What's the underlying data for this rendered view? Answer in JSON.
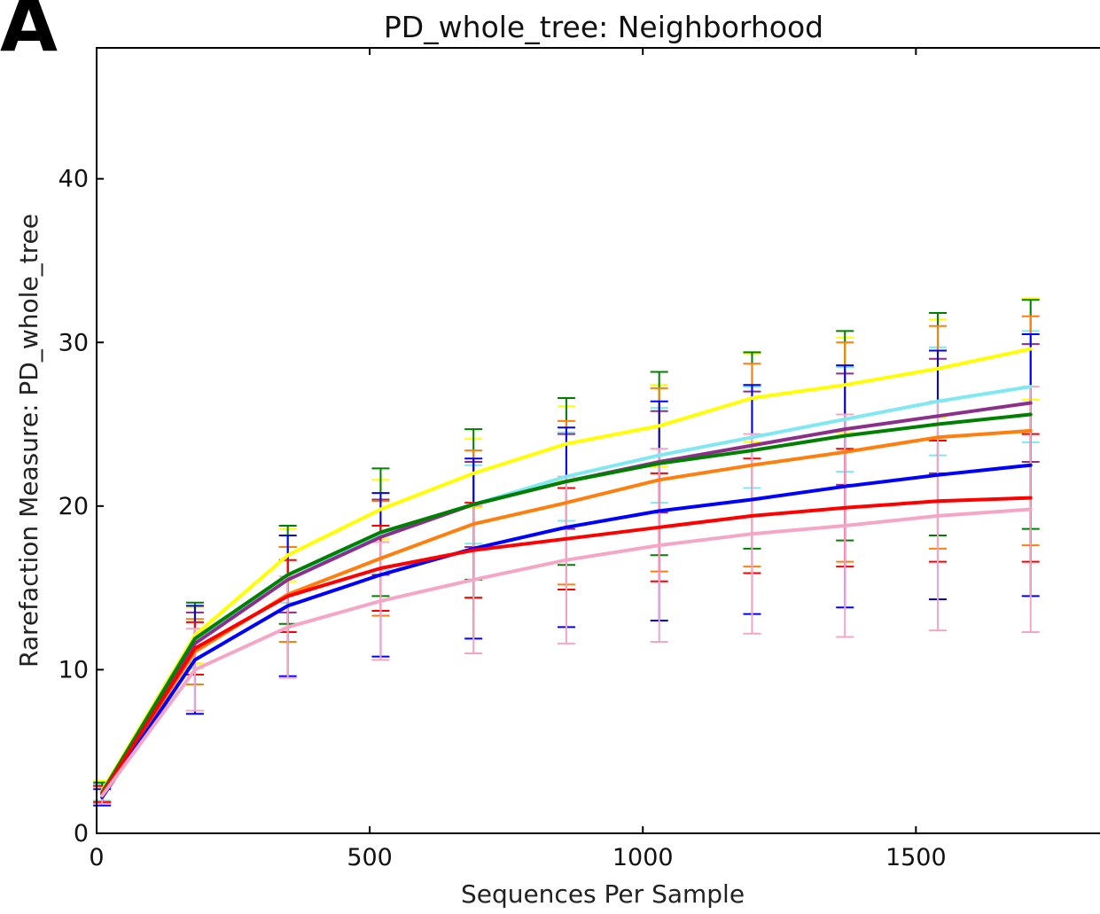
{
  "panel_label": "A",
  "chart_data": {
    "type": "line",
    "title": "PD_whole_tree: Neighborhood",
    "xlabel": "Sequences Per Sample",
    "ylabel": "Rarefaction Measure: PD_whole_tree",
    "xlim": [
      0,
      1850
    ],
    "ylim": [
      0,
      48
    ],
    "xticks": [
      0,
      500,
      1000,
      1500
    ],
    "yticks": [
      0,
      10,
      20,
      30,
      40
    ],
    "grid": false,
    "legend": "none",
    "x": [
      10,
      180,
      350,
      520,
      690,
      860,
      1030,
      1200,
      1370,
      1540,
      1710
    ],
    "series": [
      {
        "color": "#ffff00",
        "values": [
          2.6,
          12.1,
          17.0,
          19.8,
          22.0,
          23.8,
          24.9,
          26.6,
          27.4,
          28.4,
          29.6
        ],
        "errors": [
          0.6,
          1.7,
          1.6,
          1.8,
          2.1,
          2.3,
          2.5,
          2.7,
          2.9,
          3.0,
          3.1
        ]
      },
      {
        "color": "#7fe8f0",
        "values": [
          2.5,
          11.8,
          15.8,
          18.2,
          20.1,
          21.8,
          23.1,
          24.2,
          25.3,
          26.4,
          27.3
        ],
        "errors": [
          0.5,
          1.7,
          1.7,
          2.1,
          2.4,
          2.7,
          2.9,
          3.1,
          3.2,
          3.3,
          3.4
        ]
      },
      {
        "color": "#8b2f8b",
        "values": [
          2.4,
          11.6,
          15.5,
          18.1,
          20.1,
          21.5,
          22.7,
          23.7,
          24.7,
          25.5,
          26.3
        ],
        "errors": [
          0.5,
          1.9,
          2.0,
          2.3,
          2.6,
          2.9,
          3.1,
          3.3,
          3.4,
          3.5,
          3.6
        ]
      },
      {
        "color": "#008000",
        "values": [
          2.5,
          11.9,
          15.8,
          18.4,
          20.1,
          21.5,
          22.6,
          23.4,
          24.3,
          25.0,
          25.6
        ],
        "errors": [
          0.6,
          2.2,
          3.0,
          3.9,
          4.6,
          5.1,
          5.6,
          6.0,
          6.4,
          6.8,
          7.0
        ]
      },
      {
        "color": "#ff7f0e",
        "values": [
          2.4,
          11.1,
          14.6,
          16.8,
          18.9,
          20.2,
          21.6,
          22.5,
          23.3,
          24.2,
          24.6
        ],
        "errors": [
          0.5,
          2.0,
          2.9,
          3.5,
          4.5,
          5.0,
          5.6,
          6.2,
          6.7,
          6.8,
          7.0
        ]
      },
      {
        "color": "#0000ff",
        "values": [
          2.2,
          10.6,
          13.9,
          15.8,
          17.4,
          18.7,
          19.7,
          20.4,
          21.2,
          21.9,
          22.5
        ],
        "errors": [
          0.5,
          3.3,
          4.3,
          5.0,
          5.5,
          6.1,
          6.7,
          7.0,
          7.4,
          7.6,
          8.0
        ]
      },
      {
        "color": "#ff0000",
        "values": [
          2.4,
          11.3,
          14.5,
          16.2,
          17.3,
          18.0,
          18.7,
          19.4,
          19.9,
          20.3,
          20.5
        ],
        "errors": [
          0.5,
          1.6,
          2.2,
          2.6,
          2.9,
          3.1,
          3.3,
          3.5,
          3.6,
          3.7,
          3.9
        ]
      },
      {
        "color": "#f5a6c6",
        "values": [
          2.3,
          10.0,
          12.6,
          14.2,
          15.5,
          16.7,
          17.6,
          18.3,
          18.8,
          19.4,
          19.8
        ],
        "errors": [
          0.5,
          2.5,
          3.1,
          3.6,
          4.5,
          5.1,
          5.9,
          6.1,
          6.8,
          7.0,
          7.5
        ]
      }
    ]
  }
}
